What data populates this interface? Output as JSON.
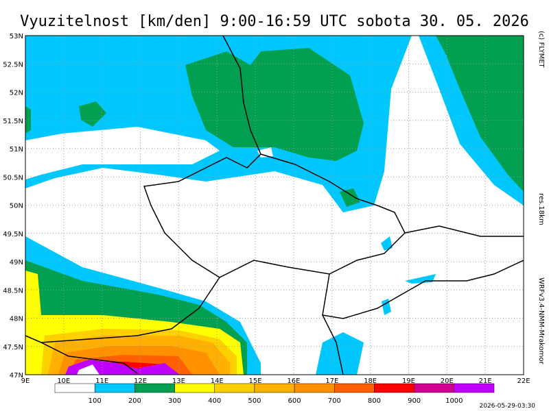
{
  "title": "Vyuzitelnost [km/den] 9:00-16:59 UTC  sobota 30. 05. 2026",
  "map": {
    "lon_range": [
      9,
      22
    ],
    "lat_range": [
      47,
      53
    ],
    "lon_ticks": [
      {
        "value": 9,
        "label": "9E"
      },
      {
        "value": 10,
        "label": "10E"
      },
      {
        "value": 11,
        "label": "11E"
      },
      {
        "value": 12,
        "label": "12E"
      },
      {
        "value": 13,
        "label": "13E"
      },
      {
        "value": 14,
        "label": "14E"
      },
      {
        "value": 15,
        "label": "15E"
      },
      {
        "value": 16,
        "label": "16E"
      },
      {
        "value": 17,
        "label": "17E"
      },
      {
        "value": 18,
        "label": "18E"
      },
      {
        "value": 19,
        "label": "19E"
      },
      {
        "value": 20,
        "label": "20E"
      },
      {
        "value": 21,
        "label": "21E"
      },
      {
        "value": 22,
        "label": "22E"
      }
    ],
    "lat_ticks": [
      {
        "value": 47,
        "label": "47N"
      },
      {
        "value": 47.5,
        "label": "47.5N"
      },
      {
        "value": 48,
        "label": "48N"
      },
      {
        "value": 48.5,
        "label": "48.5N"
      },
      {
        "value": 49,
        "label": "49N"
      },
      {
        "value": 49.5,
        "label": "49.5N"
      },
      {
        "value": 50,
        "label": "50N"
      },
      {
        "value": 50.5,
        "label": "50.5N"
      },
      {
        "value": 51,
        "label": "51N"
      },
      {
        "value": 51.5,
        "label": "51.5N"
      },
      {
        "value": 52,
        "label": "52N"
      },
      {
        "value": 52.5,
        "label": "52.5N"
      },
      {
        "value": 53,
        "label": "53N"
      }
    ]
  },
  "legend": {
    "levels": [
      100,
      200,
      300,
      400,
      500,
      600,
      700,
      800,
      900,
      1000
    ],
    "colors": [
      "#ffffff",
      "#00c8ff",
      "#00a050",
      "#ffff00",
      "#ffd000",
      "#ffb000",
      "#ff9000",
      "#ff6000",
      "#ff0000",
      "#d00090",
      "#c000ff"
    ]
  },
  "credits": {
    "copyright": "(c) FLYMET",
    "resolution": "res.18km",
    "model": "WRFv3.4-NMM-Mrakomor",
    "run": "2026-05-29-03:30"
  }
}
